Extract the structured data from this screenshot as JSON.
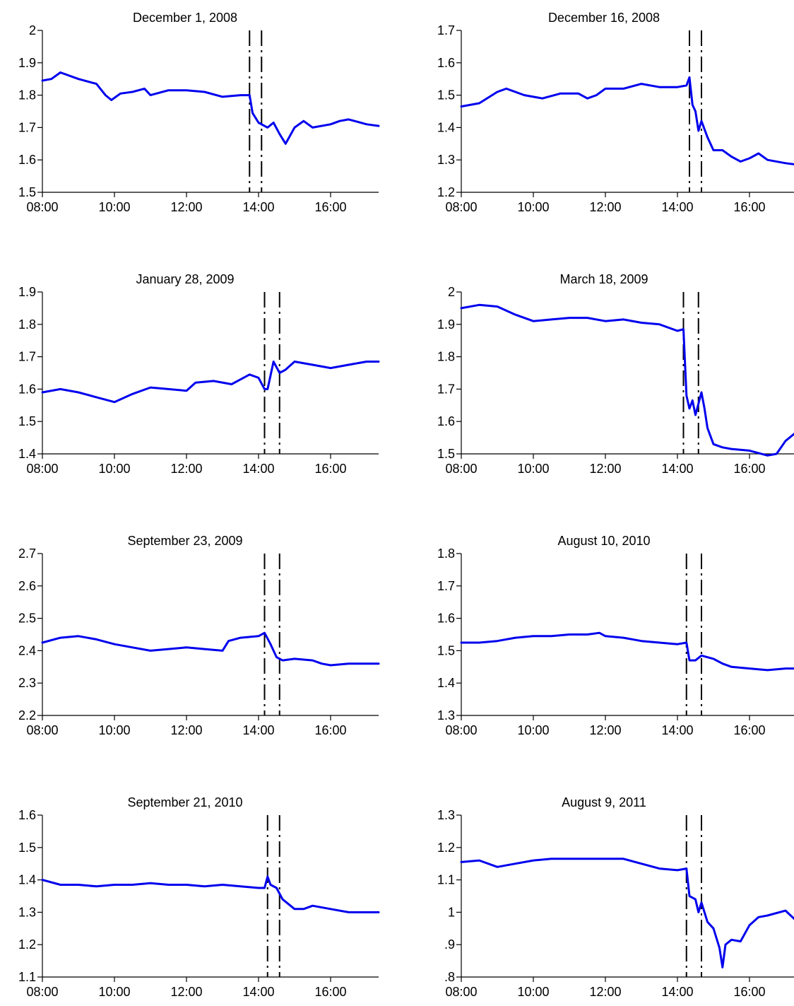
{
  "chart_data": [
    {
      "type": "line",
      "title": "December 1, 2008",
      "ylim": [
        1.5,
        2.0
      ],
      "yticks": [
        "1.5",
        "1.6",
        "1.7",
        "1.8",
        "1.9",
        "2"
      ],
      "xticks": [
        "08:00",
        "10:00",
        "12:00",
        "14:00",
        "16:00"
      ],
      "event_times": [
        "13:45",
        "14:05"
      ],
      "series": [
        {
          "points": [
            [
              "08:00",
              1.845
            ],
            [
              "08:15",
              1.85
            ],
            [
              "08:30",
              1.87
            ],
            [
              "09:00",
              1.85
            ],
            [
              "09:30",
              1.835
            ],
            [
              "09:45",
              1.8
            ],
            [
              "09:55",
              1.785
            ],
            [
              "10:10",
              1.805
            ],
            [
              "10:30",
              1.81
            ],
            [
              "10:50",
              1.82
            ],
            [
              "11:00",
              1.8
            ],
            [
              "11:30",
              1.815
            ],
            [
              "12:00",
              1.815
            ],
            [
              "12:30",
              1.81
            ],
            [
              "13:00",
              1.795
            ],
            [
              "13:30",
              1.8
            ],
            [
              "13:45",
              1.8
            ],
            [
              "13:50",
              1.745
            ],
            [
              "14:00",
              1.715
            ],
            [
              "14:15",
              1.7
            ],
            [
              "14:25",
              1.715
            ],
            [
              "14:35",
              1.68
            ],
            [
              "14:45",
              1.65
            ],
            [
              "15:00",
              1.7
            ],
            [
              "15:15",
              1.72
            ],
            [
              "15:30",
              1.7
            ],
            [
              "16:00",
              1.71
            ],
            [
              "16:15",
              1.72
            ],
            [
              "16:30",
              1.725
            ],
            [
              "17:00",
              1.71
            ],
            [
              "17:20",
              1.705
            ]
          ]
        }
      ]
    },
    {
      "type": "line",
      "title": "December 16, 2008",
      "ylim": [
        1.2,
        1.7
      ],
      "yticks": [
        "1.2",
        "1.3",
        "1.4",
        "1.5",
        "1.6",
        "1.7"
      ],
      "xticks": [
        "08:00",
        "10:00",
        "12:00",
        "14:00",
        "16:00"
      ],
      "event_times": [
        "14:20",
        "14:40"
      ],
      "series": [
        {
          "points": [
            [
              "08:00",
              1.465
            ],
            [
              "08:30",
              1.475
            ],
            [
              "09:00",
              1.51
            ],
            [
              "09:15",
              1.52
            ],
            [
              "09:45",
              1.5
            ],
            [
              "10:15",
              1.49
            ],
            [
              "10:45",
              1.505
            ],
            [
              "11:15",
              1.505
            ],
            [
              "11:30",
              1.49
            ],
            [
              "11:45",
              1.5
            ],
            [
              "12:00",
              1.52
            ],
            [
              "12:30",
              1.52
            ],
            [
              "13:00",
              1.535
            ],
            [
              "13:30",
              1.525
            ],
            [
              "14:00",
              1.525
            ],
            [
              "14:15",
              1.53
            ],
            [
              "14:20",
              1.555
            ],
            [
              "14:25",
              1.47
            ],
            [
              "14:30",
              1.45
            ],
            [
              "14:35",
              1.39
            ],
            [
              "14:40",
              1.42
            ],
            [
              "14:50",
              1.37
            ],
            [
              "15:00",
              1.33
            ],
            [
              "15:15",
              1.33
            ],
            [
              "15:30",
              1.31
            ],
            [
              "15:45",
              1.295
            ],
            [
              "16:00",
              1.305
            ],
            [
              "16:15",
              1.32
            ],
            [
              "16:30",
              1.3
            ],
            [
              "17:00",
              1.29
            ],
            [
              "17:20",
              1.285
            ]
          ]
        }
      ]
    },
    {
      "type": "line",
      "title": "January 28, 2009",
      "ylim": [
        1.4,
        1.9
      ],
      "yticks": [
        "1.4",
        "1.5",
        "1.6",
        "1.7",
        "1.8",
        "1.9"
      ],
      "xticks": [
        "08:00",
        "10:00",
        "12:00",
        "14:00",
        "16:00"
      ],
      "event_times": [
        "14:10",
        "14:35"
      ],
      "series": [
        {
          "points": [
            [
              "08:00",
              1.59
            ],
            [
              "08:30",
              1.6
            ],
            [
              "09:00",
              1.59
            ],
            [
              "09:30",
              1.575
            ],
            [
              "10:00",
              1.56
            ],
            [
              "10:30",
              1.585
            ],
            [
              "11:00",
              1.605
            ],
            [
              "11:30",
              1.6
            ],
            [
              "12:00",
              1.595
            ],
            [
              "12:15",
              1.62
            ],
            [
              "12:45",
              1.625
            ],
            [
              "13:15",
              1.615
            ],
            [
              "13:30",
              1.63
            ],
            [
              "13:45",
              1.645
            ],
            [
              "14:00",
              1.635
            ],
            [
              "14:10",
              1.6
            ],
            [
              "14:15",
              1.6
            ],
            [
              "14:25",
              1.685
            ],
            [
              "14:35",
              1.65
            ],
            [
              "14:45",
              1.66
            ],
            [
              "15:00",
              1.685
            ],
            [
              "15:30",
              1.675
            ],
            [
              "16:00",
              1.665
            ],
            [
              "16:30",
              1.675
            ],
            [
              "17:00",
              1.685
            ],
            [
              "17:20",
              1.685
            ]
          ]
        }
      ]
    },
    {
      "type": "line",
      "title": "March 18, 2009",
      "ylim": [
        1.5,
        2.0
      ],
      "yticks": [
        "1.5",
        "1.6",
        "1.7",
        "1.8",
        "1.9",
        "2"
      ],
      "xticks": [
        "08:00",
        "10:00",
        "12:00",
        "14:00",
        "16:00"
      ],
      "event_times": [
        "14:10",
        "14:35"
      ],
      "series": [
        {
          "points": [
            [
              "08:00",
              1.95
            ],
            [
              "08:30",
              1.96
            ],
            [
              "09:00",
              1.955
            ],
            [
              "09:30",
              1.93
            ],
            [
              "10:00",
              1.91
            ],
            [
              "10:30",
              1.915
            ],
            [
              "11:00",
              1.92
            ],
            [
              "11:30",
              1.92
            ],
            [
              "12:00",
              1.91
            ],
            [
              "12:30",
              1.915
            ],
            [
              "13:00",
              1.905
            ],
            [
              "13:30",
              1.9
            ],
            [
              "14:00",
              1.88
            ],
            [
              "14:10",
              1.885
            ],
            [
              "14:15",
              1.68
            ],
            [
              "14:20",
              1.64
            ],
            [
              "14:25",
              1.665
            ],
            [
              "14:30",
              1.62
            ],
            [
              "14:40",
              1.69
            ],
            [
              "14:45",
              1.64
            ],
            [
              "14:50",
              1.58
            ],
            [
              "15:00",
              1.53
            ],
            [
              "15:15",
              1.52
            ],
            [
              "15:30",
              1.515
            ],
            [
              "16:00",
              1.51
            ],
            [
              "16:30",
              1.495
            ],
            [
              "16:45",
              1.5
            ],
            [
              "17:00",
              1.54
            ],
            [
              "17:20",
              1.57
            ]
          ]
        }
      ]
    },
    {
      "type": "line",
      "title": "September 23, 2009",
      "ylim": [
        2.2,
        2.7
      ],
      "yticks": [
        "2.2",
        "2.3",
        "2.4",
        "2.5",
        "2.6",
        "2.7"
      ],
      "xticks": [
        "08:00",
        "10:00",
        "12:00",
        "14:00",
        "16:00"
      ],
      "event_times": [
        "14:10",
        "14:35"
      ],
      "series": [
        {
          "points": [
            [
              "08:00",
              2.425
            ],
            [
              "08:30",
              2.44
            ],
            [
              "09:00",
              2.445
            ],
            [
              "09:30",
              2.435
            ],
            [
              "10:00",
              2.42
            ],
            [
              "10:30",
              2.41
            ],
            [
              "11:00",
              2.4
            ],
            [
              "11:30",
              2.405
            ],
            [
              "12:00",
              2.41
            ],
            [
              "12:30",
              2.405
            ],
            [
              "13:00",
              2.4
            ],
            [
              "13:10",
              2.43
            ],
            [
              "13:30",
              2.44
            ],
            [
              "14:00",
              2.445
            ],
            [
              "14:10",
              2.455
            ],
            [
              "14:20",
              2.42
            ],
            [
              "14:30",
              2.38
            ],
            [
              "14:40",
              2.37
            ],
            [
              "15:00",
              2.375
            ],
            [
              "15:30",
              2.37
            ],
            [
              "15:45",
              2.36
            ],
            [
              "16:00",
              2.355
            ],
            [
              "16:30",
              2.36
            ],
            [
              "17:00",
              2.36
            ],
            [
              "17:20",
              2.36
            ]
          ]
        }
      ]
    },
    {
      "type": "line",
      "title": "August 10, 2010",
      "ylim": [
        1.3,
        1.8
      ],
      "yticks": [
        "1.3",
        "1.4",
        "1.5",
        "1.6",
        "1.7",
        "1.8"
      ],
      "xticks": [
        "08:00",
        "10:00",
        "12:00",
        "14:00",
        "16:00"
      ],
      "event_times": [
        "14:15",
        "14:40"
      ],
      "series": [
        {
          "points": [
            [
              "08:00",
              1.525
            ],
            [
              "08:30",
              1.525
            ],
            [
              "09:00",
              1.53
            ],
            [
              "09:30",
              1.54
            ],
            [
              "10:00",
              1.545
            ],
            [
              "10:30",
              1.545
            ],
            [
              "11:00",
              1.55
            ],
            [
              "11:30",
              1.55
            ],
            [
              "11:50",
              1.555
            ],
            [
              "12:00",
              1.545
            ],
            [
              "12:30",
              1.54
            ],
            [
              "13:00",
              1.53
            ],
            [
              "13:30",
              1.525
            ],
            [
              "14:00",
              1.52
            ],
            [
              "14:15",
              1.525
            ],
            [
              "14:20",
              1.47
            ],
            [
              "14:30",
              1.47
            ],
            [
              "14:40",
              1.485
            ],
            [
              "15:00",
              1.475
            ],
            [
              "15:15",
              1.46
            ],
            [
              "15:30",
              1.45
            ],
            [
              "16:00",
              1.445
            ],
            [
              "16:30",
              1.44
            ],
            [
              "17:00",
              1.445
            ],
            [
              "17:20",
              1.445
            ]
          ]
        }
      ]
    },
    {
      "type": "line",
      "title": "September 21, 2010",
      "ylim": [
        1.1,
        1.6
      ],
      "yticks": [
        "1.1",
        "1.2",
        "1.3",
        "1.4",
        "1.5",
        "1.6"
      ],
      "xticks": [
        "08:00",
        "10:00",
        "12:00",
        "14:00",
        "16:00"
      ],
      "event_times": [
        "14:15",
        "14:35"
      ],
      "series": [
        {
          "points": [
            [
              "08:00",
              1.4
            ],
            [
              "08:30",
              1.385
            ],
            [
              "09:00",
              1.385
            ],
            [
              "09:30",
              1.38
            ],
            [
              "10:00",
              1.385
            ],
            [
              "10:30",
              1.385
            ],
            [
              "11:00",
              1.39
            ],
            [
              "11:30",
              1.385
            ],
            [
              "12:00",
              1.385
            ],
            [
              "12:30",
              1.38
            ],
            [
              "13:00",
              1.385
            ],
            [
              "13:30",
              1.38
            ],
            [
              "14:00",
              1.375
            ],
            [
              "14:10",
              1.375
            ],
            [
              "14:15",
              1.41
            ],
            [
              "14:20",
              1.385
            ],
            [
              "14:30",
              1.375
            ],
            [
              "14:40",
              1.34
            ],
            [
              "15:00",
              1.31
            ],
            [
              "15:15",
              1.31
            ],
            [
              "15:30",
              1.32
            ],
            [
              "16:00",
              1.31
            ],
            [
              "16:30",
              1.3
            ],
            [
              "17:00",
              1.3
            ],
            [
              "17:20",
              1.3
            ]
          ]
        }
      ]
    },
    {
      "type": "line",
      "title": "August 9, 2011",
      "ylim": [
        0.8,
        1.3
      ],
      "yticks": [
        ".8",
        ".9",
        "1",
        "1.1",
        "1.2",
        "1.3"
      ],
      "xticks": [
        "08:00",
        "10:00",
        "12:00",
        "14:00",
        "16:00"
      ],
      "event_times": [
        "14:15",
        "14:40"
      ],
      "series": [
        {
          "points": [
            [
              "08:00",
              1.155
            ],
            [
              "08:30",
              1.16
            ],
            [
              "09:00",
              1.14
            ],
            [
              "09:30",
              1.15
            ],
            [
              "10:00",
              1.16
            ],
            [
              "10:30",
              1.165
            ],
            [
              "11:00",
              1.165
            ],
            [
              "11:30",
              1.165
            ],
            [
              "12:00",
              1.165
            ],
            [
              "12:30",
              1.165
            ],
            [
              "13:00",
              1.15
            ],
            [
              "13:30",
              1.135
            ],
            [
              "14:00",
              1.13
            ],
            [
              "14:15",
              1.135
            ],
            [
              "14:20",
              1.05
            ],
            [
              "14:30",
              1.04
            ],
            [
              "14:35",
              1.0
            ],
            [
              "14:40",
              1.03
            ],
            [
              "14:50",
              0.97
            ],
            [
              "15:00",
              0.95
            ],
            [
              "15:10",
              0.89
            ],
            [
              "15:15",
              0.83
            ],
            [
              "15:20",
              0.9
            ],
            [
              "15:30",
              0.915
            ],
            [
              "15:45",
              0.91
            ],
            [
              "16:00",
              0.96
            ],
            [
              "16:15",
              0.985
            ],
            [
              "16:30",
              0.99
            ],
            [
              "17:00",
              1.005
            ],
            [
              "17:20",
              0.97
            ]
          ]
        }
      ]
    }
  ],
  "colors": {
    "series": "#0000ee",
    "event_lines": "#000000"
  }
}
